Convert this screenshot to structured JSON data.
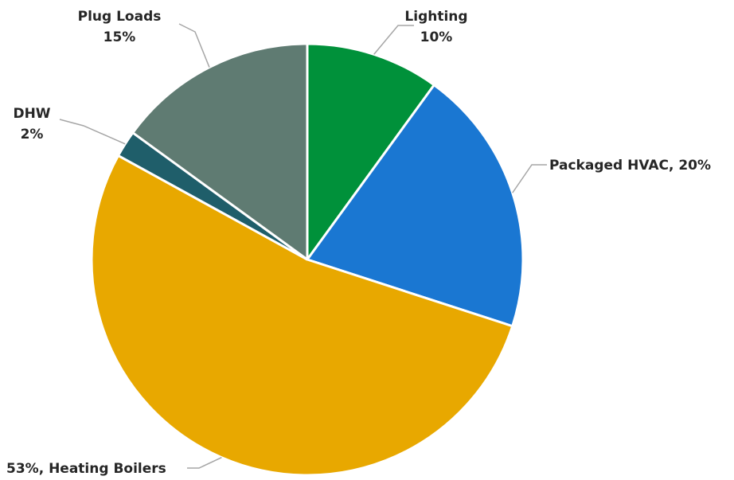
{
  "chart_data": {
    "type": "pie",
    "title": "",
    "start_angle_deg": 0,
    "direction": "clockwise",
    "slices": [
      {
        "name": "Lighting",
        "value": 10,
        "color": "#00913a",
        "label_line1": "Lighting",
        "label_line2": "10%"
      },
      {
        "name": "Packaged HVAC",
        "value": 20,
        "color": "#1a77d2",
        "label_line1": "Packaged HVAC, 20%",
        "label_line2": ""
      },
      {
        "name": "Heating Boilers",
        "value": 53,
        "color": "#e8a800",
        "label_line1": "53%, Heating Boilers",
        "label_line2": ""
      },
      {
        "name": "DHW",
        "value": 2,
        "color": "#1f5e6a",
        "label_line1": "DHW",
        "label_line2": "2%"
      },
      {
        "name": "Plug Loads",
        "value": 15,
        "color": "#5f7b72",
        "label_line1": "Plug Loads",
        "label_line2": "15%"
      }
    ]
  }
}
